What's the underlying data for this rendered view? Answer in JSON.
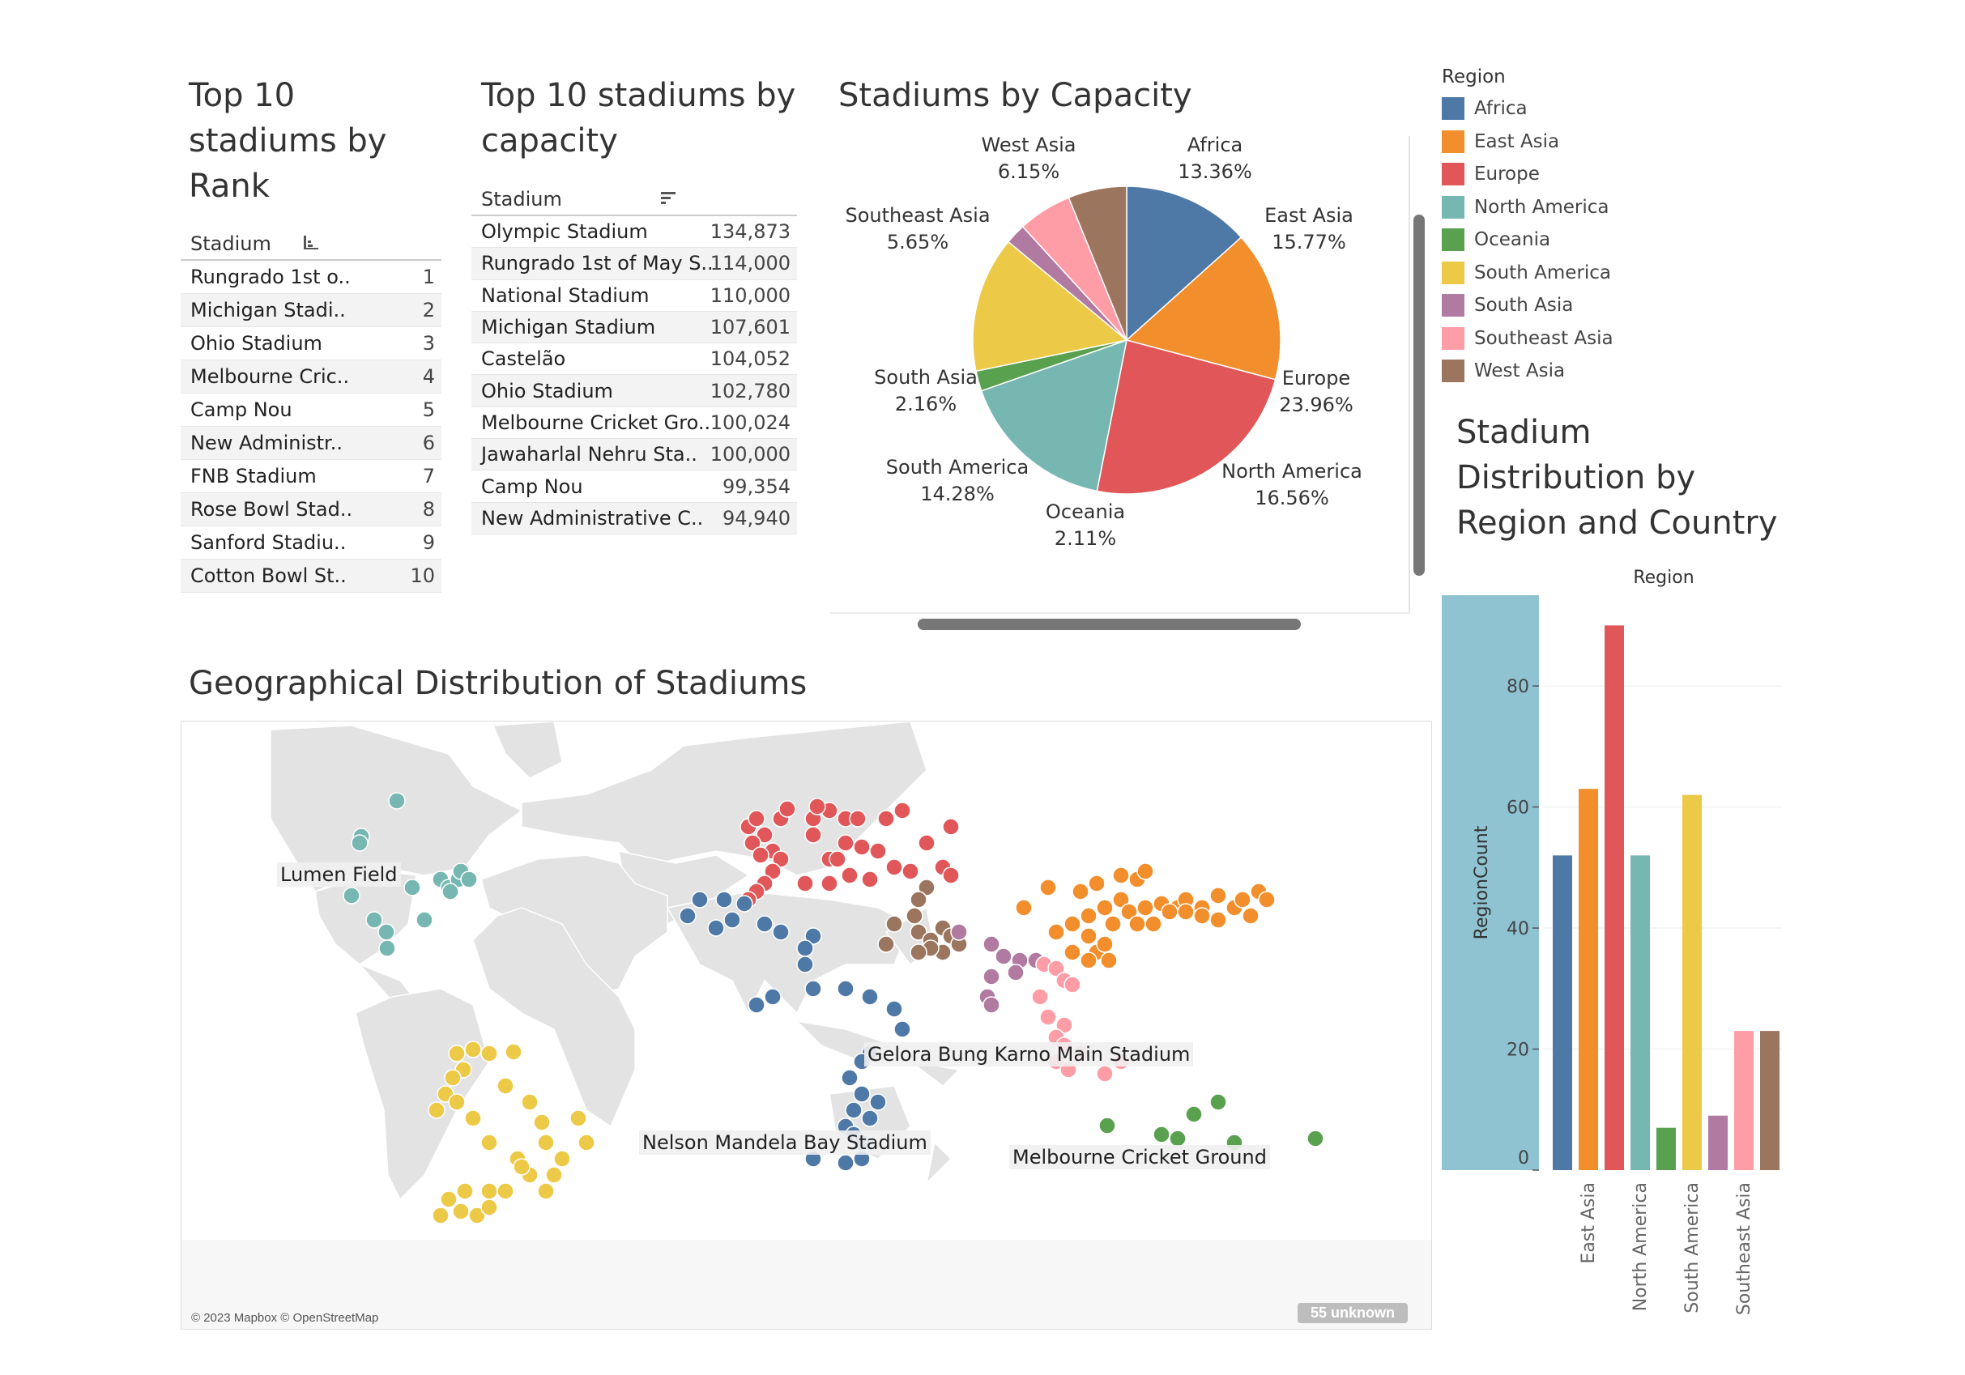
{
  "rank_table": {
    "title": "Top 10 stadiums by Rank",
    "title_lines": [
      "Top 10",
      "stadiums by",
      "Rank"
    ],
    "column": "Stadium",
    "rows": [
      {
        "name": "Rungrado 1st o..",
        "rank": "1"
      },
      {
        "name": "Michigan Stadi..",
        "rank": "2"
      },
      {
        "name": "Ohio Stadium",
        "rank": "3"
      },
      {
        "name": "Melbourne Cric..",
        "rank": "4"
      },
      {
        "name": "Camp Nou",
        "rank": "5"
      },
      {
        "name": "New Administr..",
        "rank": "6"
      },
      {
        "name": "FNB Stadium",
        "rank": "7"
      },
      {
        "name": "Rose Bowl Stad..",
        "rank": "8"
      },
      {
        "name": "Sanford Stadiu..",
        "rank": "9"
      },
      {
        "name": "Cotton Bowl St..",
        "rank": "10"
      }
    ]
  },
  "capacity_table": {
    "title_lines": [
      "Top 10 stadiums by",
      "capacity"
    ],
    "column": "Stadium",
    "rows": [
      {
        "name": "Olympic Stadium",
        "capacity": "134,873"
      },
      {
        "name": "Rungrado 1st of May S..",
        "capacity": "114,000"
      },
      {
        "name": "National Stadium",
        "capacity": "110,000"
      },
      {
        "name": "Michigan Stadium",
        "capacity": "107,601"
      },
      {
        "name": "Castelão",
        "capacity": "104,052"
      },
      {
        "name": "Ohio Stadium",
        "capacity": "102,780"
      },
      {
        "name": "Melbourne Cricket Gro..",
        "capacity": "100,024"
      },
      {
        "name": "Jawaharlal Nehru Sta..",
        "capacity": "100,000"
      },
      {
        "name": "Camp Nou",
        "capacity": "99,354"
      },
      {
        "name": "New Administrative C..",
        "capacity": "94,940"
      }
    ]
  },
  "legend": {
    "title": "Region",
    "items": [
      {
        "label": "Africa",
        "color": "#4e79a7"
      },
      {
        "label": "East Asia",
        "color": "#f28e2b"
      },
      {
        "label": "Europe",
        "color": "#e15759"
      },
      {
        "label": "North America",
        "color": "#76b7b2"
      },
      {
        "label": "Oceania",
        "color": "#59a14f"
      },
      {
        "label": "South America",
        "color": "#edc948"
      },
      {
        "label": "South Asia",
        "color": "#b07aa1"
      },
      {
        "label": "Southeast Asia",
        "color": "#ff9da7"
      },
      {
        "label": "West Asia",
        "color": "#9c755f"
      }
    ]
  },
  "map": {
    "title": "Geographical Distribution of Stadiums",
    "credit": "© 2023 Mapbox © OpenStreetMap",
    "unknown": "55 unknown",
    "labels": [
      "Lumen Field",
      "Gelora Bung Karno Main Stadium",
      "Nelson Mandela Bay Stadium",
      "Melbourne Cricket Ground"
    ]
  },
  "chart_data": [
    {
      "type": "pie",
      "title": "Stadiums by Capacity",
      "slices": [
        {
          "label": "Africa",
          "value": 13.36,
          "text": "13.36%",
          "color": "#4e79a7"
        },
        {
          "label": "East Asia",
          "value": 15.77,
          "text": "15.77%",
          "color": "#f28e2b"
        },
        {
          "label": "Europe",
          "value": 23.96,
          "text": "23.96%",
          "color": "#e15759"
        },
        {
          "label": "North America",
          "value": 16.56,
          "text": "16.56%",
          "color": "#76b7b2"
        },
        {
          "label": "Oceania",
          "value": 2.11,
          "text": "2.11%",
          "color": "#59a14f"
        },
        {
          "label": "South America",
          "value": 14.28,
          "text": "14.28%",
          "color": "#edc948"
        },
        {
          "label": "South Asia",
          "value": 2.16,
          "text": "2.16%",
          "color": "#b07aa1"
        },
        {
          "label": "Southeast Asia",
          "value": 5.65,
          "text": "5.65%",
          "color": "#ff9da7"
        },
        {
          "label": "West Asia",
          "value": 6.15,
          "text": "6.15%",
          "color": "#9c755f"
        }
      ]
    },
    {
      "type": "bar",
      "title": "Stadium Distribution by Region and Country",
      "title_lines": [
        "Stadium",
        "Distribution by",
        "Region and Country"
      ],
      "column_header": "Region",
      "ylabel": "RegionCount",
      "ylim": [
        0,
        95
      ],
      "yticks": [
        0,
        20,
        40,
        60,
        80
      ],
      "categories": [
        "Africa",
        "East Asia",
        "Europe",
        "North America",
        "Oceania",
        "South America",
        "South Asia",
        "Southeast Asia",
        "West Asia"
      ],
      "values": [
        52,
        63,
        90,
        52,
        7,
        62,
        9,
        23,
        23
      ],
      "colors": [
        "#4e79a7",
        "#f28e2b",
        "#e15759",
        "#76b7b2",
        "#59a14f",
        "#edc948",
        "#b07aa1",
        "#ff9da7",
        "#9c755f"
      ],
      "visible_tick_labels": [
        "East Asia",
        "North America",
        "South America",
        "Southeast Asia"
      ]
    }
  ]
}
